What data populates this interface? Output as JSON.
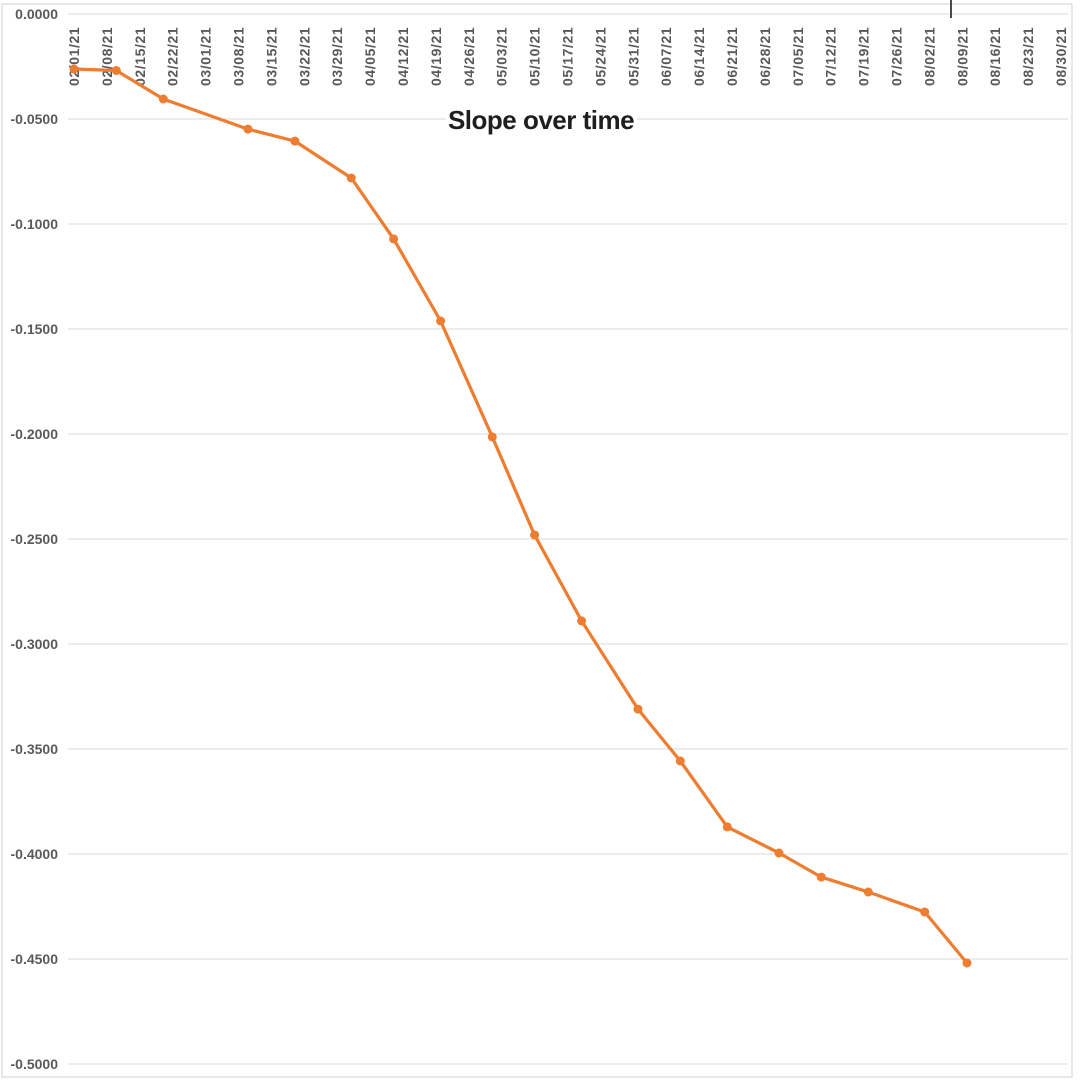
{
  "chart_data": {
    "type": "line",
    "title": "Slope over time",
    "x_axis": {
      "kind": "date",
      "first_tick": "02/01/21",
      "last_tick": "08/30/21",
      "tick_interval_days": 7,
      "label_rotation": "vertical",
      "tick_labels": [
        "02/01/21",
        "02/08/21",
        "02/15/21",
        "02/22/21",
        "03/01/21",
        "03/08/21",
        "03/15/21",
        "03/22/21",
        "03/29/21",
        "04/05/21",
        "04/12/21",
        "04/19/21",
        "04/26/21",
        "05/03/21",
        "05/10/21",
        "05/17/21",
        "05/24/21",
        "05/31/21",
        "06/07/21",
        "06/14/21",
        "06/21/21",
        "06/28/21",
        "07/05/21",
        "07/12/21",
        "07/19/21",
        "07/26/21",
        "08/02/21",
        "08/09/21",
        "08/16/21",
        "08/23/21",
        "08/30/21"
      ]
    },
    "y_axis": {
      "min": -0.5,
      "max": 0.0,
      "tick_step": 0.05,
      "tick_labels": [
        "0.0000",
        "-0.0500",
        "-0.1000",
        "-0.1500",
        "-0.2000",
        "-0.2500",
        "-0.3000",
        "-0.3500",
        "-0.4000",
        "-0.4500",
        "-0.5000"
      ]
    },
    "grid": true,
    "legend": false,
    "series": [
      {
        "name": "Slope",
        "dates": [
          "02/01/21",
          "02/10/21",
          "02/20/21",
          "03/10/21",
          "03/20/21",
          "04/01/21",
          "04/10/21",
          "04/20/21",
          "05/01/21",
          "05/10/21",
          "05/20/21",
          "06/01/21",
          "06/10/21",
          "06/20/21",
          "07/01/21",
          "07/10/21",
          "07/20/21",
          "08/01/21",
          "08/10/21"
        ],
        "values": [
          -0.0262,
          -0.0269,
          -0.0405,
          -0.0548,
          -0.0605,
          -0.0781,
          -0.1071,
          -0.1462,
          -0.2014,
          -0.2481,
          -0.289,
          -0.331,
          -0.3557,
          -0.3871,
          -0.3995,
          -0.411,
          -0.4181,
          -0.4276,
          -0.4519
        ]
      }
    ],
    "colors": {
      "line": "#ED7D31",
      "marker": "#ED7D31",
      "gridline": "#D9D9D9",
      "axis_label": "#595959",
      "title": "#1F1F1F",
      "chart_border": "#D0D0D0",
      "background": "#FFFFFF",
      "cursor_artifact": "#4A4A4A"
    }
  }
}
